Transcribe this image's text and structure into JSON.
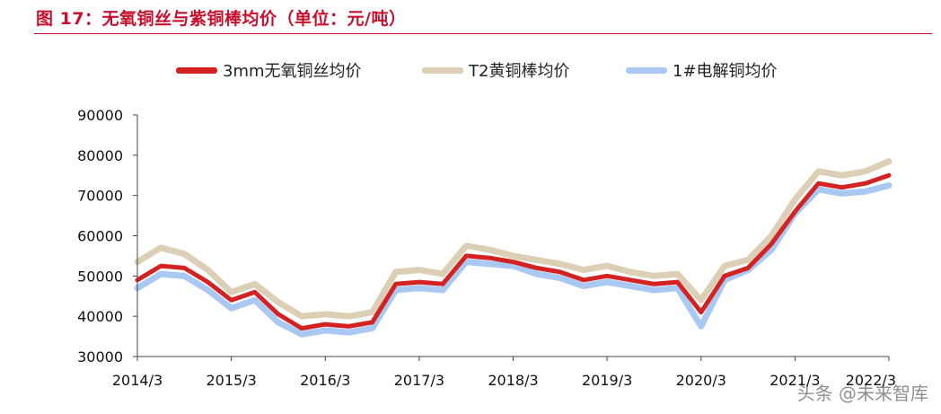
{
  "title": "图 17：无氧铜丝与紫铜棒均价（单位：元/吨）",
  "watermark": "头条 @未来智库",
  "colors": {
    "title": "#c8102e",
    "series_1": "#d42222",
    "series_2": "#dccfb5",
    "series_3": "#a9c8f2"
  },
  "chart_data": {
    "type": "line",
    "title": "无氧铜丝与紫铜棒均价（单位：元/吨）",
    "xlabel": "",
    "ylabel": "",
    "ylim": [
      30000,
      90000
    ],
    "yticks": [
      "90000",
      "80000",
      "70000",
      "60000",
      "50000",
      "40000",
      "30000"
    ],
    "xtick_labels": [
      "2014/3",
      "2015/3",
      "2016/3",
      "2017/3",
      "2018/3",
      "2019/3",
      "2020/3",
      "2021/3",
      "2022/3"
    ],
    "grid": false,
    "legend_position": "top",
    "x": [
      "2014/3",
      "2014/6",
      "2014/9",
      "2014/12",
      "2015/3",
      "2015/6",
      "2015/9",
      "2015/12",
      "2016/3",
      "2016/6",
      "2016/9",
      "2016/12",
      "2017/3",
      "2017/6",
      "2017/9",
      "2017/12",
      "2018/3",
      "2018/6",
      "2018/9",
      "2018/12",
      "2019/3",
      "2019/6",
      "2019/9",
      "2019/12",
      "2020/3",
      "2020/6",
      "2020/9",
      "2020/12",
      "2021/3",
      "2021/6",
      "2021/9",
      "2021/12",
      "2022/3"
    ],
    "series": [
      {
        "name": "3mm无氧铜丝均价",
        "values": [
          49000,
          52500,
          52000,
          48500,
          44000,
          46000,
          40500,
          37000,
          38000,
          37500,
          38500,
          48000,
          48500,
          48000,
          55000,
          54500,
          53500,
          52000,
          51000,
          49000,
          50000,
          49000,
          48000,
          48500,
          41000,
          50000,
          52000,
          58000,
          66000,
          73000,
          72000,
          73000,
          75000
        ]
      },
      {
        "name": "T2黄铜棒均价",
        "values": [
          53500,
          57000,
          55500,
          51500,
          46000,
          48000,
          43500,
          40000,
          40500,
          40000,
          41000,
          51000,
          51500,
          50500,
          57500,
          56500,
          55000,
          54000,
          53000,
          51500,
          52500,
          51000,
          50000,
          50500,
          44000,
          52500,
          54000,
          60000,
          69000,
          76000,
          75000,
          76000,
          78500
        ]
      },
      {
        "name": "1#电解铜均价",
        "values": [
          47000,
          50500,
          50000,
          46500,
          42000,
          44000,
          38500,
          35500,
          36500,
          36000,
          37000,
          46500,
          47000,
          46500,
          53500,
          53000,
          52500,
          50500,
          49500,
          47500,
          48500,
          47500,
          46500,
          47000,
          37500,
          49000,
          51500,
          56500,
          65500,
          71500,
          70500,
          71000,
          72500
        ]
      }
    ]
  }
}
